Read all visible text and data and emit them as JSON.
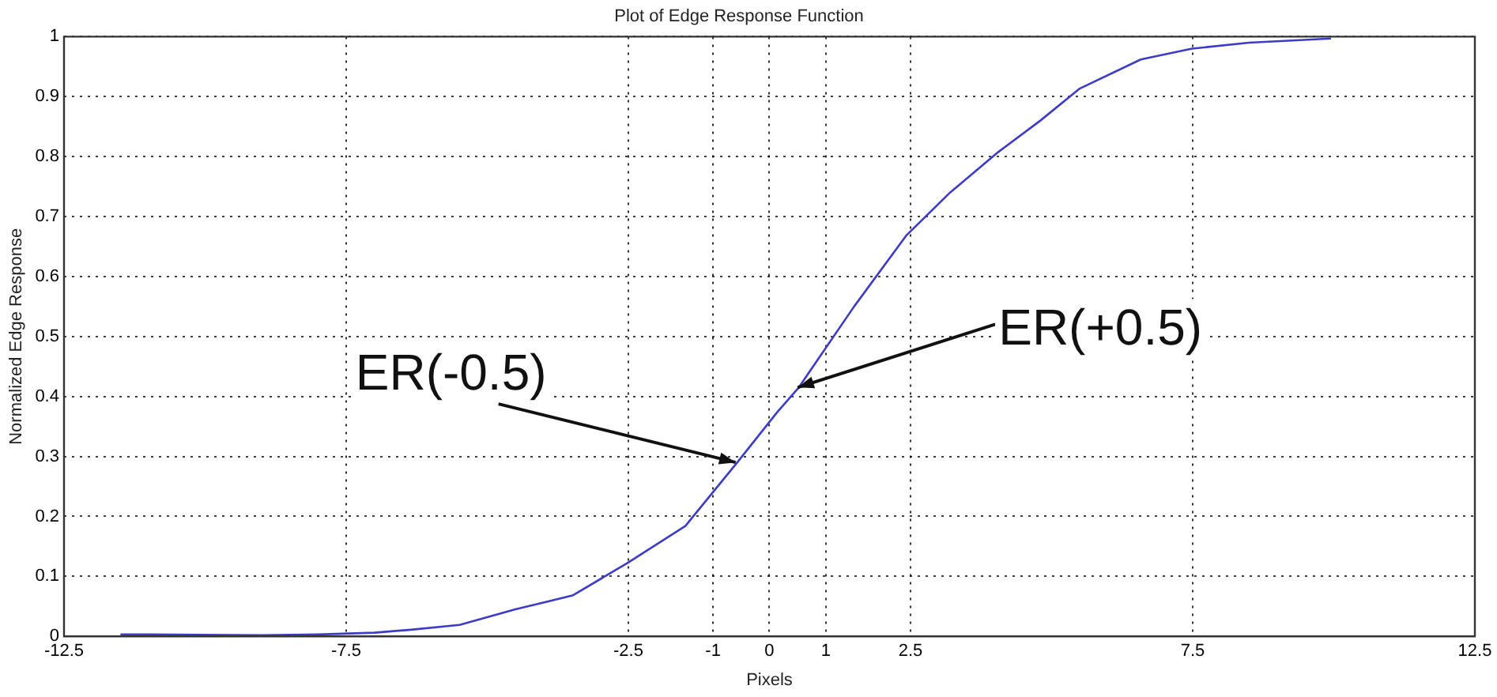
{
  "chart_data": {
    "type": "line",
    "title": "Plot of Edge Response Function",
    "xlabel": "Pixels",
    "ylabel": "Normalized Edge Response",
    "x": [
      -11.5,
      -11,
      -9,
      -8,
      -7,
      -6.35,
      -5.49,
      -4.5,
      -3.49,
      -2.52,
      -1.49,
      -0.57,
      0.14,
      0.52,
      1.5,
      2.43,
      3.2,
      4.06,
      4.8,
      5.49,
      6.58,
      7.49,
      8.5,
      9.95
    ],
    "series": [
      {
        "color": "#3c3cc8",
        "values": [
          0.003,
          0.003,
          0.002,
          0.003,
          0.006,
          0.011,
          0.019,
          0.045,
          0.068,
          0.122,
          0.184,
          0.29,
          0.374,
          0.415,
          0.55,
          0.669,
          0.74,
          0.808,
          0.86,
          0.913,
          0.962,
          0.98,
          0.99,
          0.997
        ]
      }
    ],
    "xlim": [
      -12.5,
      12.5
    ],
    "xticks": [
      -12.5,
      -7.5,
      -2.5,
      -1,
      0,
      1,
      2.5,
      7.5,
      12.5
    ],
    "ylim": [
      0,
      1
    ],
    "yticks": [
      0,
      0.1,
      0.2,
      0.3,
      0.4,
      0.5,
      0.6,
      0.7,
      0.8,
      0.9,
      1
    ],
    "grid": true,
    "marker": "none",
    "line_style": "solid",
    "legend": false,
    "annotations": [
      {
        "text": "ER(-0.5)",
        "x": -0.6,
        "y": 0.29
      },
      {
        "text": "ER(+0.5)",
        "x": 0.5,
        "y": 0.415
      }
    ]
  }
}
